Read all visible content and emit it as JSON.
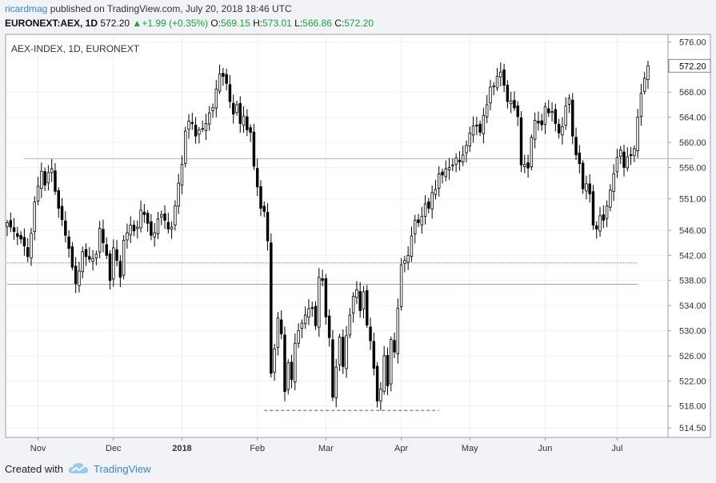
{
  "header": {
    "author": "ricardmag",
    "published_text": "published on TradingView.com, July 20, 2018 18:46 UTC",
    "symbol": "EURONEXT:AEX, 1D",
    "last": "572.20",
    "change": "+1.99 (+0.35%)",
    "o_label": "O:",
    "o_val": "569.15",
    "h_label": "H:",
    "h_val": "573.01",
    "l_label": "L:",
    "l_val": "566.86",
    "c_label": "C:",
    "c_val": "572.20"
  },
  "footer": {
    "created_with": "Created with",
    "brand": "TradingView"
  },
  "chart_data": {
    "type": "candlestick",
    "title": "AEX-INDEX, 1D, EURONEXT",
    "ylim": [
      513.0,
      577.2
    ],
    "y_ticks": [
      576.0,
      568.0,
      564.0,
      560.0,
      556.0,
      551.0,
      546.0,
      542.0,
      538.0,
      534.0,
      530.0,
      526.0,
      522.0,
      518.0,
      514.5
    ],
    "y_tick_labels": [
      "576.00",
      "568.00",
      "564.00",
      "560.00",
      "556.00",
      "551.00",
      "546.00",
      "542.00",
      "538.00",
      "534.00",
      "530.00",
      "526.00",
      "522.00",
      "518.00",
      "514.50"
    ],
    "last_price_label": "572.20",
    "last_price": 572.2,
    "x_ticks": [
      {
        "label": "Nov",
        "index": 9
      },
      {
        "label": "Dec",
        "index": 31
      },
      {
        "label": "2018",
        "index": 51
      },
      {
        "label": "Feb",
        "index": 73
      },
      {
        "label": "Mar",
        "index": 93
      },
      {
        "label": "Apr",
        "index": 115
      },
      {
        "label": "May",
        "index": 135
      },
      {
        "label": "Jun",
        "index": 157
      },
      {
        "label": "Jul",
        "index": 178
      }
    ],
    "hlines": [
      {
        "y": 557.4,
        "from": 5,
        "to": 200,
        "style": "dotted"
      },
      {
        "y": 540.8,
        "from": 0,
        "to": 184,
        "style": "dotted"
      },
      {
        "y": 537.4,
        "from": 0,
        "to": 184,
        "style": "solid"
      },
      {
        "y": 517.3,
        "from": 75,
        "to": 126,
        "style": "dashed"
      }
    ],
    "closes": [
      547.2,
      546.5,
      545.8,
      545.0,
      544.6,
      543.5,
      541.8,
      545.5,
      550.5,
      553.0,
      555.4,
      553.2,
      555.2,
      555.8,
      552.2,
      549.5,
      547.7,
      545.2,
      543.1,
      540.1,
      537.5,
      539.5,
      542.6,
      541.8,
      541.4,
      541.5,
      542.2,
      546.3,
      544.0,
      542.0,
      538.0,
      543.2,
      541.2,
      538.5,
      544.4,
      545.6,
      546.8,
      545.9,
      546.5,
      549.2,
      548.5,
      547.1,
      545.2,
      545.6,
      547.8,
      548.5,
      547.6,
      546.2,
      546.5,
      549.9,
      553.5,
      556.5,
      561.8,
      563.4,
      563.0,
      561.0,
      562.0,
      562.2,
      563.0,
      564.7,
      565.5,
      568.5,
      570.9,
      570.5,
      569.4,
      566.5,
      564.5,
      566.0,
      563.0,
      564.2,
      562.0,
      561.6,
      556.2,
      552.9,
      549.5,
      549.0,
      544.3,
      523.2,
      527.1,
      532.0,
      529.5,
      520.3,
      524.9,
      522.2,
      528.0,
      530.0,
      531.2,
      532.5,
      533.5,
      533.6,
      530.8,
      538.5,
      538.0,
      532.2,
      528.9,
      519.4,
      524.2,
      529.0,
      524.3,
      529.2,
      532.5,
      535.5,
      536.5,
      533.2,
      536.2,
      530.9,
      528.4,
      524.0,
      518.8,
      520.7,
      526.0,
      521.2,
      528.6,
      526.6,
      533.6,
      540.5,
      541.2,
      542.0,
      545.1,
      547.6,
      547.2,
      548.2,
      550.2,
      549.5,
      552.0,
      552.5,
      555.0,
      554.8,
      555.8,
      556.0,
      556.4,
      557.5,
      556.9,
      558.0,
      559.5,
      561.5,
      562.6,
      562.6,
      561.6,
      564.3,
      566.0,
      568.8,
      569.0,
      570.5,
      571.2,
      569.1,
      566.5,
      566.6,
      565.5,
      564.1,
      556.4,
      556.5,
      555.9,
      560.8,
      563.5,
      563.1,
      562.8,
      565.7,
      564.7,
      564.9,
      563.0,
      561.5,
      562.5,
      565.8,
      567.0,
      561.0,
      558.0,
      556.6,
      552.6,
      553.4,
      551.8,
      546.8,
      546.2,
      548.3,
      547.6,
      549.9,
      552.4,
      555.0,
      557.6,
      558.8,
      556.0,
      557.7,
      557.9,
      559.0,
      564.0,
      567.8,
      570.2,
      572.2
    ]
  }
}
